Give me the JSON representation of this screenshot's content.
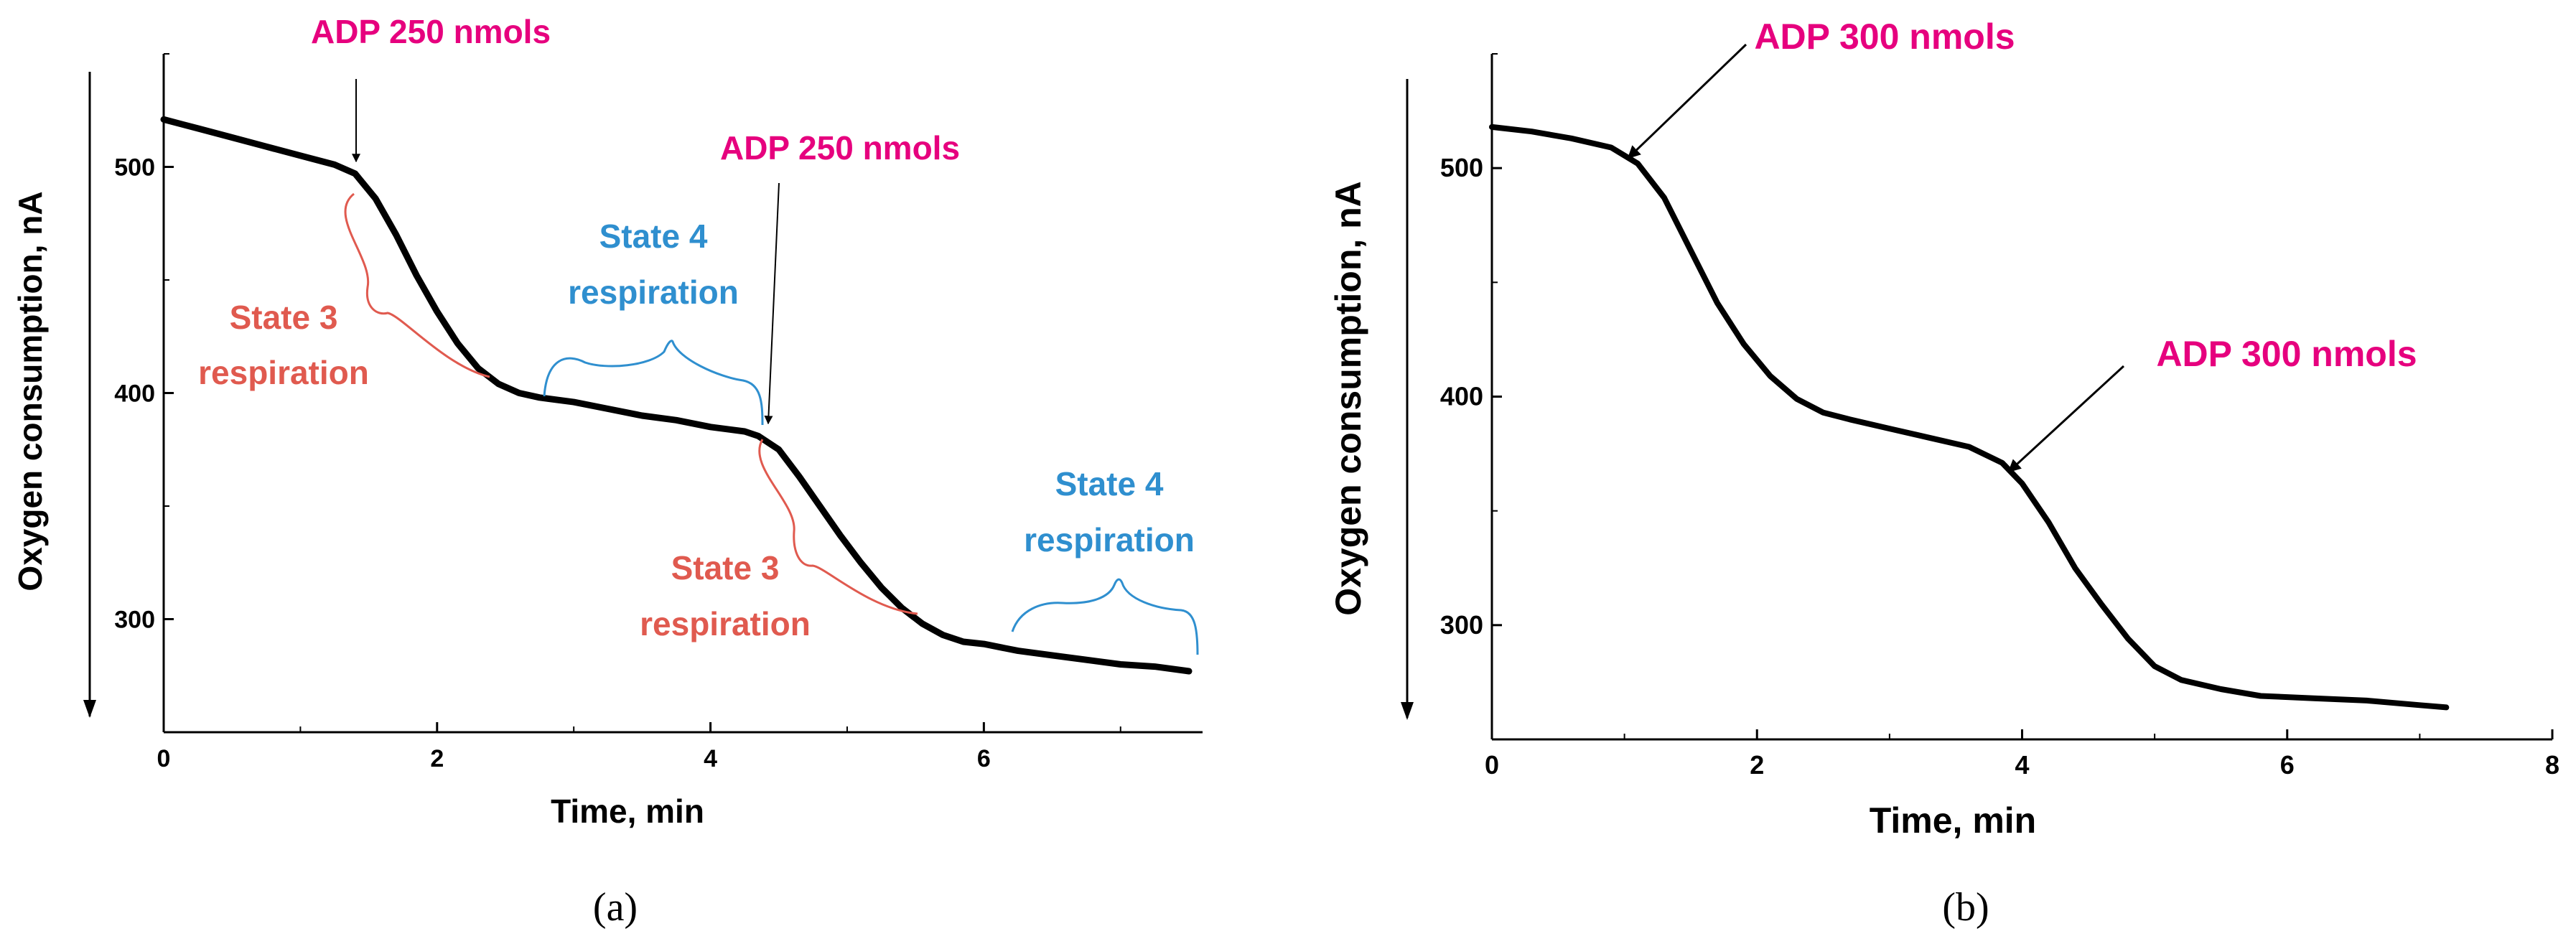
{
  "colors": {
    "adp": "#e6007e",
    "state3": "#e05a4f",
    "state4": "#2f8fcf",
    "trace": "#000000"
  },
  "chart_data": [
    {
      "type": "line",
      "caption": "(a)",
      "xlabel": "Time, min",
      "ylabel": "Oxygen consumption, nA",
      "xlim": [
        0,
        7.6
      ],
      "ylim": [
        250,
        550
      ],
      "xticks": [
        0,
        2,
        4,
        6
      ],
      "xtick_labels": [
        "0",
        "2",
        "4",
        "6"
      ],
      "yticks": [
        300,
        400,
        500
      ],
      "ytick_labels": [
        "300",
        "400",
        "500"
      ],
      "series": [
        {
          "name": "trace",
          "x": [
            0,
            0.25,
            0.5,
            0.75,
            1.0,
            1.25,
            1.4,
            1.55,
            1.7,
            1.85,
            2.0,
            2.15,
            2.3,
            2.45,
            2.6,
            2.75,
            3.0,
            3.25,
            3.5,
            3.75,
            4.0,
            4.25,
            4.35,
            4.5,
            4.65,
            4.8,
            4.95,
            5.1,
            5.25,
            5.4,
            5.55,
            5.7,
            5.85,
            6.0,
            6.25,
            6.5,
            6.75,
            7.0,
            7.25,
            7.5
          ],
          "y": [
            521,
            517,
            513,
            509,
            505,
            501,
            497,
            486,
            470,
            452,
            436,
            422,
            411,
            404,
            400,
            398,
            396,
            393,
            390,
            388,
            385,
            383,
            381,
            375,
            363,
            350,
            337,
            325,
            314,
            305,
            298,
            293,
            290,
            289,
            286,
            284,
            282,
            280,
            279,
            277
          ]
        }
      ],
      "annotations": {
        "adp1": "ADP 250 nmols",
        "adp2": "ADP 250 nmols",
        "state3a_line1": "State 3",
        "state3a_line2": "respiration",
        "state4a_line1": "State 4",
        "state4a_line2": "respiration",
        "state3b_line1": "State 3",
        "state3b_line2": "respiration",
        "state4b_line1": "State 4",
        "state4b_line2": "respiration"
      }
    },
    {
      "type": "line",
      "caption": "(b)",
      "xlabel": "Time, min",
      "ylabel": "Oxygen consumption, nA",
      "xlim": [
        0,
        8
      ],
      "ylim": [
        250,
        550
      ],
      "xticks": [
        0,
        2,
        4,
        6,
        8
      ],
      "xtick_labels": [
        "0",
        "2",
        "4",
        "6",
        "8"
      ],
      "yticks": [
        300,
        400,
        500
      ],
      "ytick_labels": [
        "300",
        "400",
        "500"
      ],
      "series": [
        {
          "name": "trace",
          "x": [
            0,
            0.3,
            0.6,
            0.9,
            1.1,
            1.3,
            1.5,
            1.7,
            1.9,
            2.1,
            2.3,
            2.5,
            2.7,
            3.0,
            3.3,
            3.6,
            3.85,
            4.0,
            4.2,
            4.4,
            4.6,
            4.8,
            5.0,
            5.2,
            5.5,
            5.8,
            6.2,
            6.6,
            7.0,
            7.2
          ],
          "y": [
            518,
            516,
            513,
            509,
            502,
            487,
            464,
            441,
            423,
            409,
            399,
            393,
            390,
            386,
            382,
            378,
            371,
            362,
            345,
            325,
            309,
            294,
            282,
            276,
            272,
            269,
            268,
            267,
            265,
            264
          ]
        }
      ],
      "annotations": {
        "adp1": "ADP 300 nmols",
        "adp2": "ADP 300 nmols"
      }
    }
  ]
}
